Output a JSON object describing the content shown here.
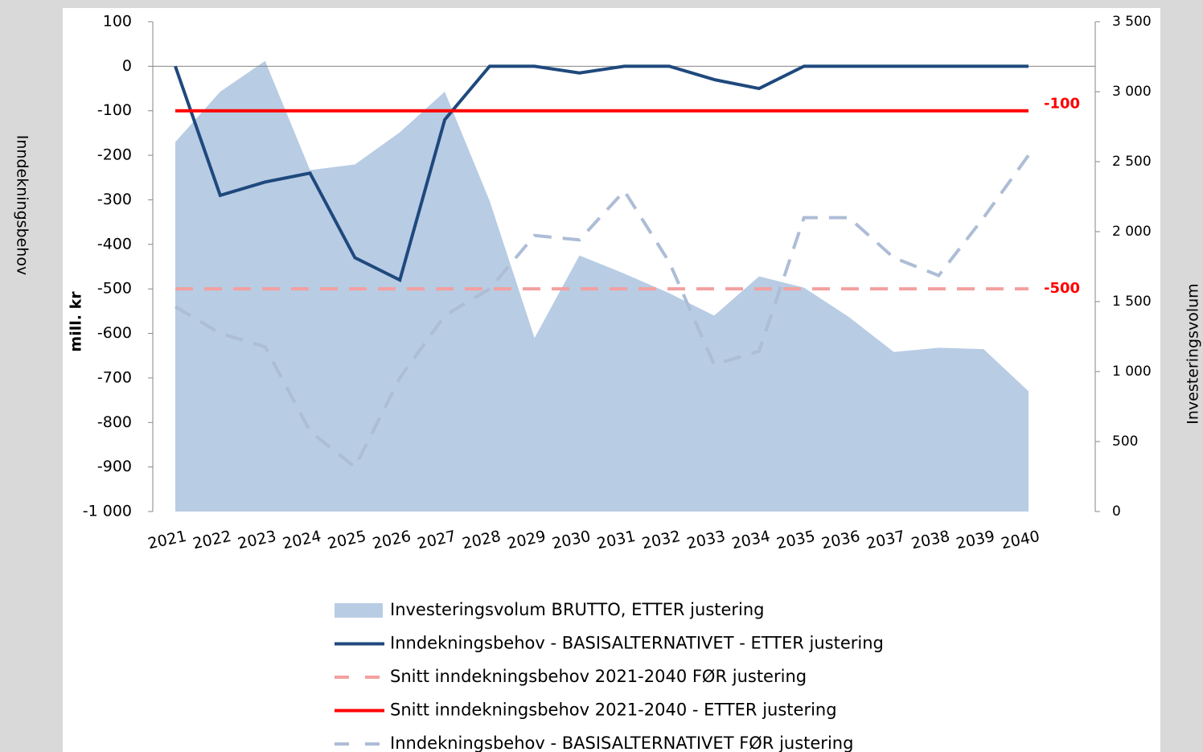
{
  "chart_data": {
    "type": "combo",
    "y_label": "Inndekningsbehov",
    "y_unit": "mill. kr",
    "y2_label": "Investeringsvolum",
    "categories": [
      "2021",
      "2022",
      "2023",
      "2024",
      "2025",
      "2026",
      "2027",
      "2028",
      "2029",
      "2030",
      "2031",
      "2032",
      "2033",
      "2034",
      "2035",
      "2036",
      "2037",
      "2038",
      "2039",
      "2040"
    ],
    "ylim": [
      -1000,
      100
    ],
    "yticks": [
      {
        "value": -1000,
        "label": "-1 000"
      },
      -900,
      -800,
      -700,
      -600,
      -500,
      -400,
      -300,
      -200,
      -100,
      0,
      100
    ],
    "y2lim": [
      0,
      3500
    ],
    "y2ticks": [
      0,
      500,
      {
        "value": 1000,
        "label": "1 000"
      },
      {
        "value": 1500,
        "label": "1 500"
      },
      {
        "value": 2000,
        "label": "2 000"
      },
      {
        "value": 2500,
        "label": "2 500"
      },
      {
        "value": 3000,
        "label": "3 000"
      },
      {
        "value": 3500,
        "label": "3 500"
      }
    ],
    "series": [
      {
        "name": "Investeringsvolum BRUTTO, ETTER justering",
        "kind": "area",
        "axis": "y2",
        "color": "#b8cce4",
        "values": [
          2640,
          3000,
          3220,
          2440,
          2480,
          2710,
          3000,
          2220,
          1240,
          1830,
          1700,
          1560,
          1400,
          1680,
          1600,
          1390,
          1140,
          1170,
          1160,
          860
        ]
      },
      {
        "name": "Inndekningsbehov - BASISALTERNATIVET - ETTER justering",
        "kind": "line",
        "color": "#1f497d",
        "dashed": false,
        "values": [
          0,
          -290,
          -260,
          -240,
          -430,
          -480,
          -120,
          0,
          0,
          -15,
          0,
          0,
          -30,
          -50,
          0,
          0,
          0,
          0,
          0,
          0
        ]
      },
      {
        "name": "Snitt inndekningsbehov 2021-2040 FØR justering",
        "kind": "line",
        "color": "#f4a0a0",
        "dashed": true,
        "end_label": true,
        "values": [
          -500,
          -500,
          -500,
          -500,
          -500,
          -500,
          -500,
          -500,
          -500,
          -500,
          -500,
          -500,
          -500,
          -500,
          -500,
          -500,
          -500,
          -500,
          -500,
          -500
        ]
      },
      {
        "name": "Snitt inndekningsbehov 2021-2040 - ETTER justering",
        "kind": "line",
        "color": "#ff0000",
        "dashed": false,
        "end_label": true,
        "values": [
          -100,
          -100,
          -100,
          -100,
          -100,
          -100,
          -100,
          -100,
          -100,
          -100,
          -100,
          -100,
          -100,
          -100,
          -100,
          -100,
          -100,
          -100,
          -100,
          -100
        ]
      },
      {
        "name": "Inndekningsbehov - BASISALTERNATIVET FØR justering",
        "kind": "line",
        "color": "#adbdd6",
        "dashed": true,
        "values": [
          -540,
          -600,
          -630,
          -820,
          -900,
          -700,
          -560,
          -500,
          -380,
          -390,
          -280,
          -440,
          -670,
          -640,
          -340,
          -340,
          -430,
          -470,
          -340,
          -200
        ]
      }
    ]
  }
}
